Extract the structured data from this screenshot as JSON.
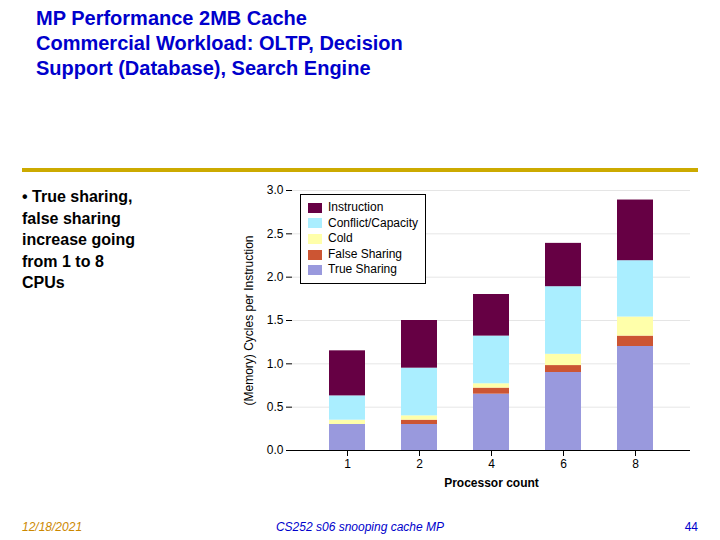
{
  "chart_data": {
    "type": "bar",
    "stacked": true,
    "title": "MP Performance 2MB Cache\nCommercial Workload: OLTP, Decision\nSupport (Database), Search Engine",
    "annotations": [
      "• True sharing,\nfalse sharing\nincrease going\nfrom 1 to 8\nCPUs",
      "12/18/2021",
      "CS252 s06 snooping cache MP",
      "44"
    ],
    "xlabel": "Processor count",
    "ylabel": "(Memory) Cycles per Instruction",
    "categories": [
      "1",
      "2",
      "4",
      "6",
      "8"
    ],
    "series": [
      {
        "name": "True Sharing",
        "color": "#9999dd",
        "values": [
          0.3,
          0.3,
          0.65,
          0.9,
          1.2
        ]
      },
      {
        "name": "False Sharing",
        "color": "#cc5533",
        "values": [
          0.0,
          0.05,
          0.07,
          0.08,
          0.12
        ]
      },
      {
        "name": "Cold",
        "color": "#ffffaa",
        "values": [
          0.05,
          0.05,
          0.05,
          0.13,
          0.22
        ]
      },
      {
        "name": "Conflict/Capacity",
        "color": "#aaeeff",
        "values": [
          0.28,
          0.55,
          0.55,
          0.78,
          0.65
        ]
      },
      {
        "name": "Instruction",
        "color": "#660044",
        "values": [
          0.52,
          0.55,
          0.48,
          0.5,
          0.7
        ]
      }
    ],
    "ylim": [
      0,
      3.0
    ],
    "yticks": [
      {
        "value": 0,
        "label": "0.0"
      },
      0.5,
      {
        "value": 1.0,
        "label": "1.0"
      },
      1.5,
      {
        "value": 2.0,
        "label": "2.0"
      },
      2.5,
      {
        "value": 3.0,
        "label": "3.0"
      }
    ],
    "grid": true,
    "legend": "upper left"
  }
}
